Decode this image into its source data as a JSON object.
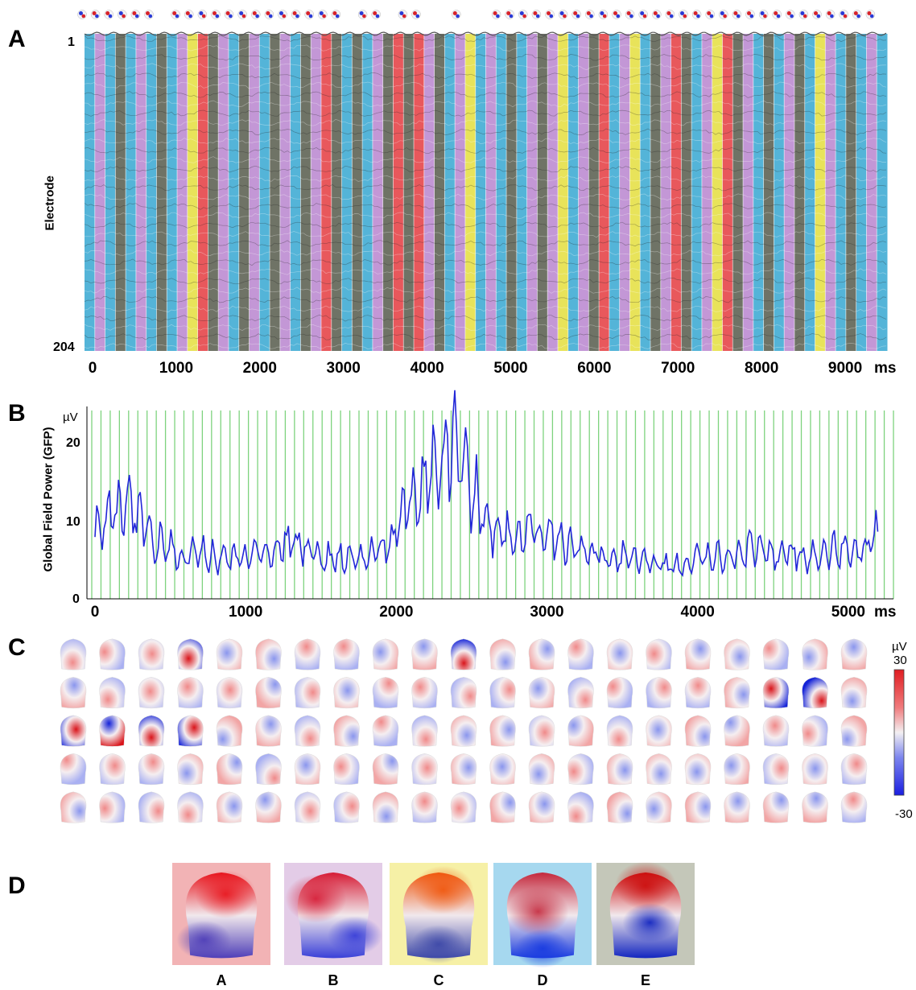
{
  "panel_labels": {
    "a": "A",
    "b": "B",
    "c": "C",
    "d": "D"
  },
  "panelA": {
    "ylabel": "Electrode",
    "y_top": "1",
    "y_bottom": "204",
    "x_ticks": [
      "0",
      "1000",
      "2000",
      "3000",
      "4000",
      "5000",
      "6000",
      "7000",
      "8000",
      "9000"
    ],
    "x_unit": "ms",
    "state_colors": {
      "A": "#e8585c",
      "B": "#c397d6",
      "C": "#e8e35a",
      "D": "#54b4d8",
      "E": "#6f7366"
    },
    "segments": [
      "D",
      "B",
      "D",
      "E",
      "D",
      "B",
      "D",
      "E",
      "D",
      "B",
      "C",
      "R",
      "E",
      "B",
      "D",
      "E",
      "B",
      "D",
      "E",
      "B",
      "D",
      "E",
      "B",
      "R",
      "E",
      "D",
      "E",
      "D",
      "B",
      "E",
      "R",
      "E",
      "R",
      "B",
      "E",
      "D",
      "B",
      "C",
      "D",
      "B",
      "D",
      "E",
      "D",
      "B",
      "E",
      "B",
      "C",
      "D",
      "B",
      "E",
      "R",
      "D",
      "B",
      "C",
      "D",
      "E",
      "B",
      "R",
      "E",
      "D",
      "B",
      "C",
      "R",
      "E",
      "B",
      "D",
      "E",
      "D",
      "B",
      "E",
      "D",
      "C",
      "B",
      "D",
      "E",
      "D",
      "B",
      "D"
    ]
  },
  "panelB": {
    "ylabel": "Global Field Power (GFP)",
    "y_unit": "µV",
    "y_ticks": [
      "0",
      "10",
      "20"
    ],
    "x_ticks": [
      "0",
      "1000",
      "2000",
      "3000",
      "4000",
      "5000"
    ],
    "x_unit": "ms"
  },
  "panelC": {
    "unit": "µV",
    "scale_max": "30",
    "scale_min": "-30",
    "rows": 5,
    "cols": 21
  },
  "panelD": {
    "labels": [
      "A",
      "B",
      "C",
      "D",
      "E"
    ],
    "bg_colors": [
      "#f2b3b5",
      "#e3cce7",
      "#f6f0a6",
      "#a6d8ef",
      "#c4c7b9"
    ]
  },
  "chart_data": [
    {
      "type": "heatmap",
      "title": "",
      "xlabel": "ms",
      "ylabel": "Electrode",
      "xlim": [
        0,
        9500
      ],
      "ylim": [
        1,
        204
      ],
      "x_ticks": [
        0,
        1000,
        2000,
        3000,
        4000,
        5000,
        6000,
        7000,
        8000,
        9000
      ],
      "categories": [
        "A",
        "B",
        "C",
        "D",
        "E"
      ]
    },
    {
      "type": "line",
      "title": "",
      "xlabel": "ms",
      "ylabel": "Global Field Power (GFP)",
      "xlim": [
        0,
        5300
      ],
      "ylim": [
        0,
        24
      ],
      "x": [
        0,
        100,
        200,
        300,
        400,
        500,
        600,
        700,
        800,
        900,
        1000,
        1100,
        1200,
        1300,
        1400,
        1500,
        1600,
        1700,
        1800,
        1900,
        2000,
        2100,
        2200,
        2300,
        2400,
        2500,
        2600,
        2700,
        2800,
        2900,
        3000,
        3100,
        3200,
        3300,
        3400,
        3500,
        3600,
        3700,
        3800,
        3900,
        4000,
        4100,
        4200,
        4300,
        4400,
        4500,
        4600,
        4700,
        4800,
        4900,
        5000,
        5100,
        5200
      ],
      "series": [
        {
          "name": "",
          "values": [
            8,
            10,
            11,
            10,
            7,
            6,
            5,
            6,
            5,
            5,
            5,
            6,
            6,
            7,
            6,
            5,
            5,
            5,
            5,
            6,
            8,
            12,
            14,
            17,
            19,
            14,
            9,
            8,
            7,
            8,
            8,
            7,
            6,
            6,
            5,
            5,
            5,
            4,
            4,
            4,
            5,
            5,
            5,
            6,
            6,
            5,
            6,
            5,
            5,
            6,
            6,
            6,
            8
          ]
        }
      ]
    }
  ]
}
